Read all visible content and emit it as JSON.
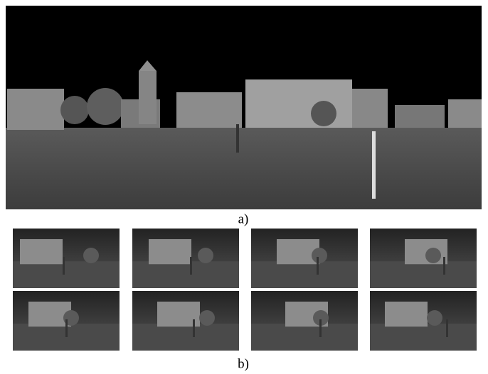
{
  "figure": {
    "captions": [
      "a)",
      "b)"
    ]
  }
}
